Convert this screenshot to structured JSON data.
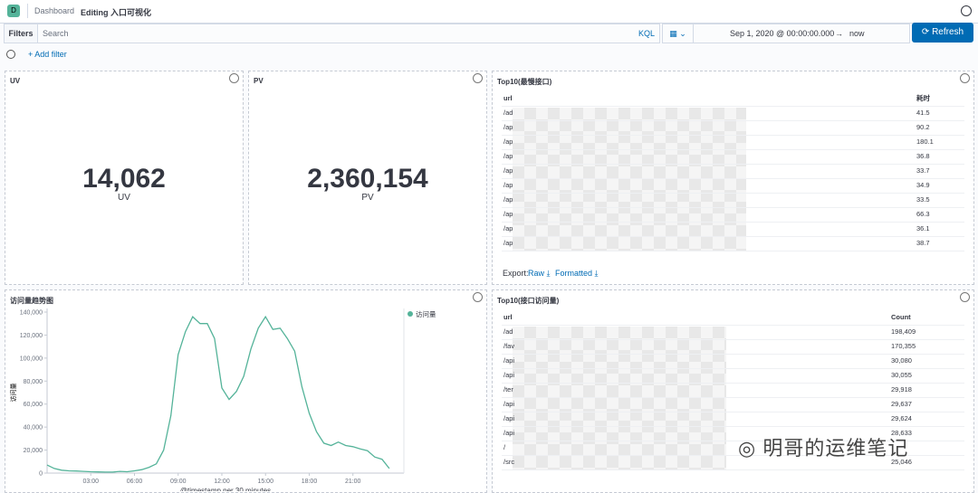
{
  "header": {
    "logo": "D",
    "breadcrumb": "Dashboard",
    "title": "Editing 入口可视化"
  },
  "filter_bar": {
    "label": "Filters",
    "placeholder": "Search",
    "language": "KQL",
    "date_start": "Sep 1, 2020 @ 00:00:00.000",
    "arrow": "→",
    "date_end": "now",
    "refresh": "Refresh",
    "add_filter": "+ Add filter"
  },
  "uv": {
    "title": "UV",
    "value": "14,062",
    "label": "UV"
  },
  "pv": {
    "title": "PV",
    "value": "2,360,154",
    "label": "PV"
  },
  "slow_table": {
    "title": "Top10(最慢接口)",
    "columns": [
      "url",
      "耗时"
    ],
    "rows": [
      [
        "/ad",
        41.5
      ],
      [
        "/ap",
        90.2
      ],
      [
        "/ap",
        180.1
      ],
      [
        "/ap",
        36.8
      ],
      [
        "/ap",
        33.7
      ],
      [
        "/ap",
        34.9
      ],
      [
        "/ap",
        33.5
      ],
      [
        "/ap",
        66.3
      ],
      [
        "/ap",
        36.1
      ],
      [
        "/ap",
        38.7
      ]
    ],
    "export": "Export:",
    "raw": "Raw",
    "formatted": "Formatted"
  },
  "count_table": {
    "title": "Top10(接口访问量)",
    "columns": [
      "url",
      "Count"
    ],
    "rows": [
      [
        "/ad",
        "198,409"
      ],
      [
        "/fav",
        "170,355"
      ],
      [
        "/api",
        "30,080"
      ],
      [
        "/api",
        "30,055"
      ],
      [
        "/ter",
        "29,918"
      ],
      [
        "/api",
        "29,637"
      ],
      [
        "/api",
        "29,624"
      ],
      [
        "/api",
        "28,633"
      ],
      [
        "/",
        null
      ],
      [
        "/src",
        "25,046"
      ]
    ]
  },
  "watermark": "明哥的运维笔记",
  "chart_data": {
    "type": "line",
    "title": "访问量趋势图",
    "y_label": "访问量",
    "x_label": "@timestamp per 30 minutes",
    "x": [
      0,
      0.5,
      1,
      1.5,
      2,
      2.5,
      3,
      3.5,
      4,
      4.5,
      5,
      5.5,
      6,
      6.5,
      7,
      7.5,
      8,
      8.5,
      9,
      9.5,
      10,
      10.5,
      11,
      11.5,
      12,
      12.5,
      13,
      13.5,
      14,
      14.5,
      15,
      15.5,
      16,
      16.5,
      17,
      17.5,
      18,
      18.5,
      19,
      19.5,
      20,
      20.5,
      21,
      21.5,
      22,
      22.5,
      23,
      23.5
    ],
    "series": [
      {
        "name": "访问量",
        "color": "#54b399",
        "values": [
          7000,
          4000,
          2500,
          2000,
          1800,
          1500,
          1200,
          1000,
          900,
          900,
          1500,
          1200,
          2000,
          3000,
          5000,
          8000,
          20000,
          50000,
          103000,
          123000,
          136000,
          130000,
          130000,
          117000,
          74000,
          64000,
          71000,
          84000,
          108000,
          126000,
          136000,
          125000,
          126000,
          117000,
          106000,
          75000,
          52000,
          36000,
          26000,
          24000,
          27000,
          24000,
          23000,
          21000,
          19500,
          14000,
          12000,
          4000
        ]
      }
    ],
    "xlim": [
      0,
      24.5
    ],
    "xticks": [
      {
        "value": 3,
        "label": "03:00"
      },
      {
        "value": 6,
        "label": "06:00"
      },
      {
        "value": 9,
        "label": "09:00"
      },
      {
        "value": 12,
        "label": "12:00"
      },
      {
        "value": 15,
        "label": "15:00"
      },
      {
        "value": 18,
        "label": "18:00"
      },
      {
        "value": 21,
        "label": "21:00"
      }
    ],
    "ylim": [
      0,
      140000
    ],
    "yticks": [
      0,
      {
        "value": 20000,
        "label": "20,000"
      },
      {
        "value": 40000,
        "label": "40,000"
      },
      {
        "value": 60000,
        "label": "60,000"
      },
      {
        "value": 80000,
        "label": "80,000"
      },
      {
        "value": 100000,
        "label": "100,000"
      },
      {
        "value": 120000,
        "label": "120,000"
      },
      {
        "value": 140000,
        "label": "140,000"
      }
    ],
    "grid": false,
    "legend": "top-right"
  }
}
